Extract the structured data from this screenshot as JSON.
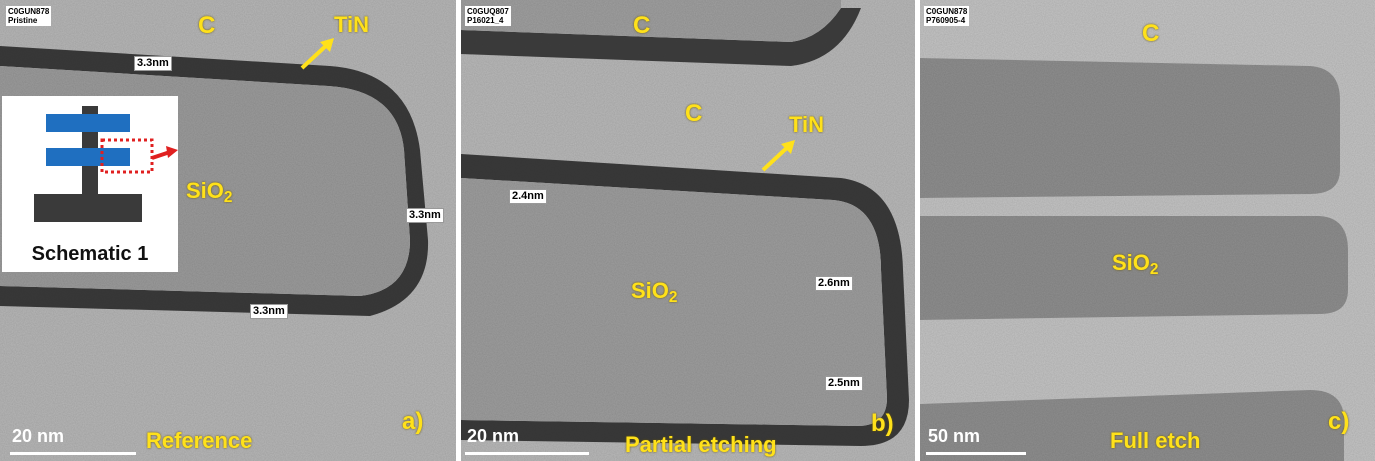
{
  "panels": [
    {
      "id": "a",
      "tag_line1": "C0GUN878",
      "tag_line2": "Pristine",
      "label_c": "C",
      "label_tin": "TiN",
      "label_sio2": "SiO",
      "sio2_sub": "2",
      "measurements": [
        "3.3nm",
        "3.3nm",
        "3.3nm"
      ],
      "scale": "20 nm",
      "caption": "Reference",
      "letter": "a)"
    },
    {
      "id": "b",
      "tag_line1": "C0GUQ807",
      "tag_line2": "P16021_4",
      "label_c_top": "C",
      "label_c_mid": "C",
      "label_tin": "TiN",
      "label_sio2": "SiO",
      "sio2_sub": "2",
      "measurements": [
        "2.4nm",
        "2.6nm",
        "2.5nm"
      ],
      "scale": "20 nm",
      "caption": "Partial etching",
      "letter": "b)"
    },
    {
      "id": "c",
      "tag_line1": "C0GUN878",
      "tag_line2": "P760905-4",
      "label_c": "C",
      "label_sio2": "SiO",
      "sio2_sub": "2",
      "scale": "50 nm",
      "caption": "Full etch",
      "letter": "c)"
    }
  ],
  "schematic": {
    "label": "Schematic 1"
  },
  "colors": {
    "annotation": "#ffe11a",
    "arrow": "#e02020",
    "schematic_blue": "#1f6fc0",
    "schematic_dark": "#3a3a3a"
  }
}
